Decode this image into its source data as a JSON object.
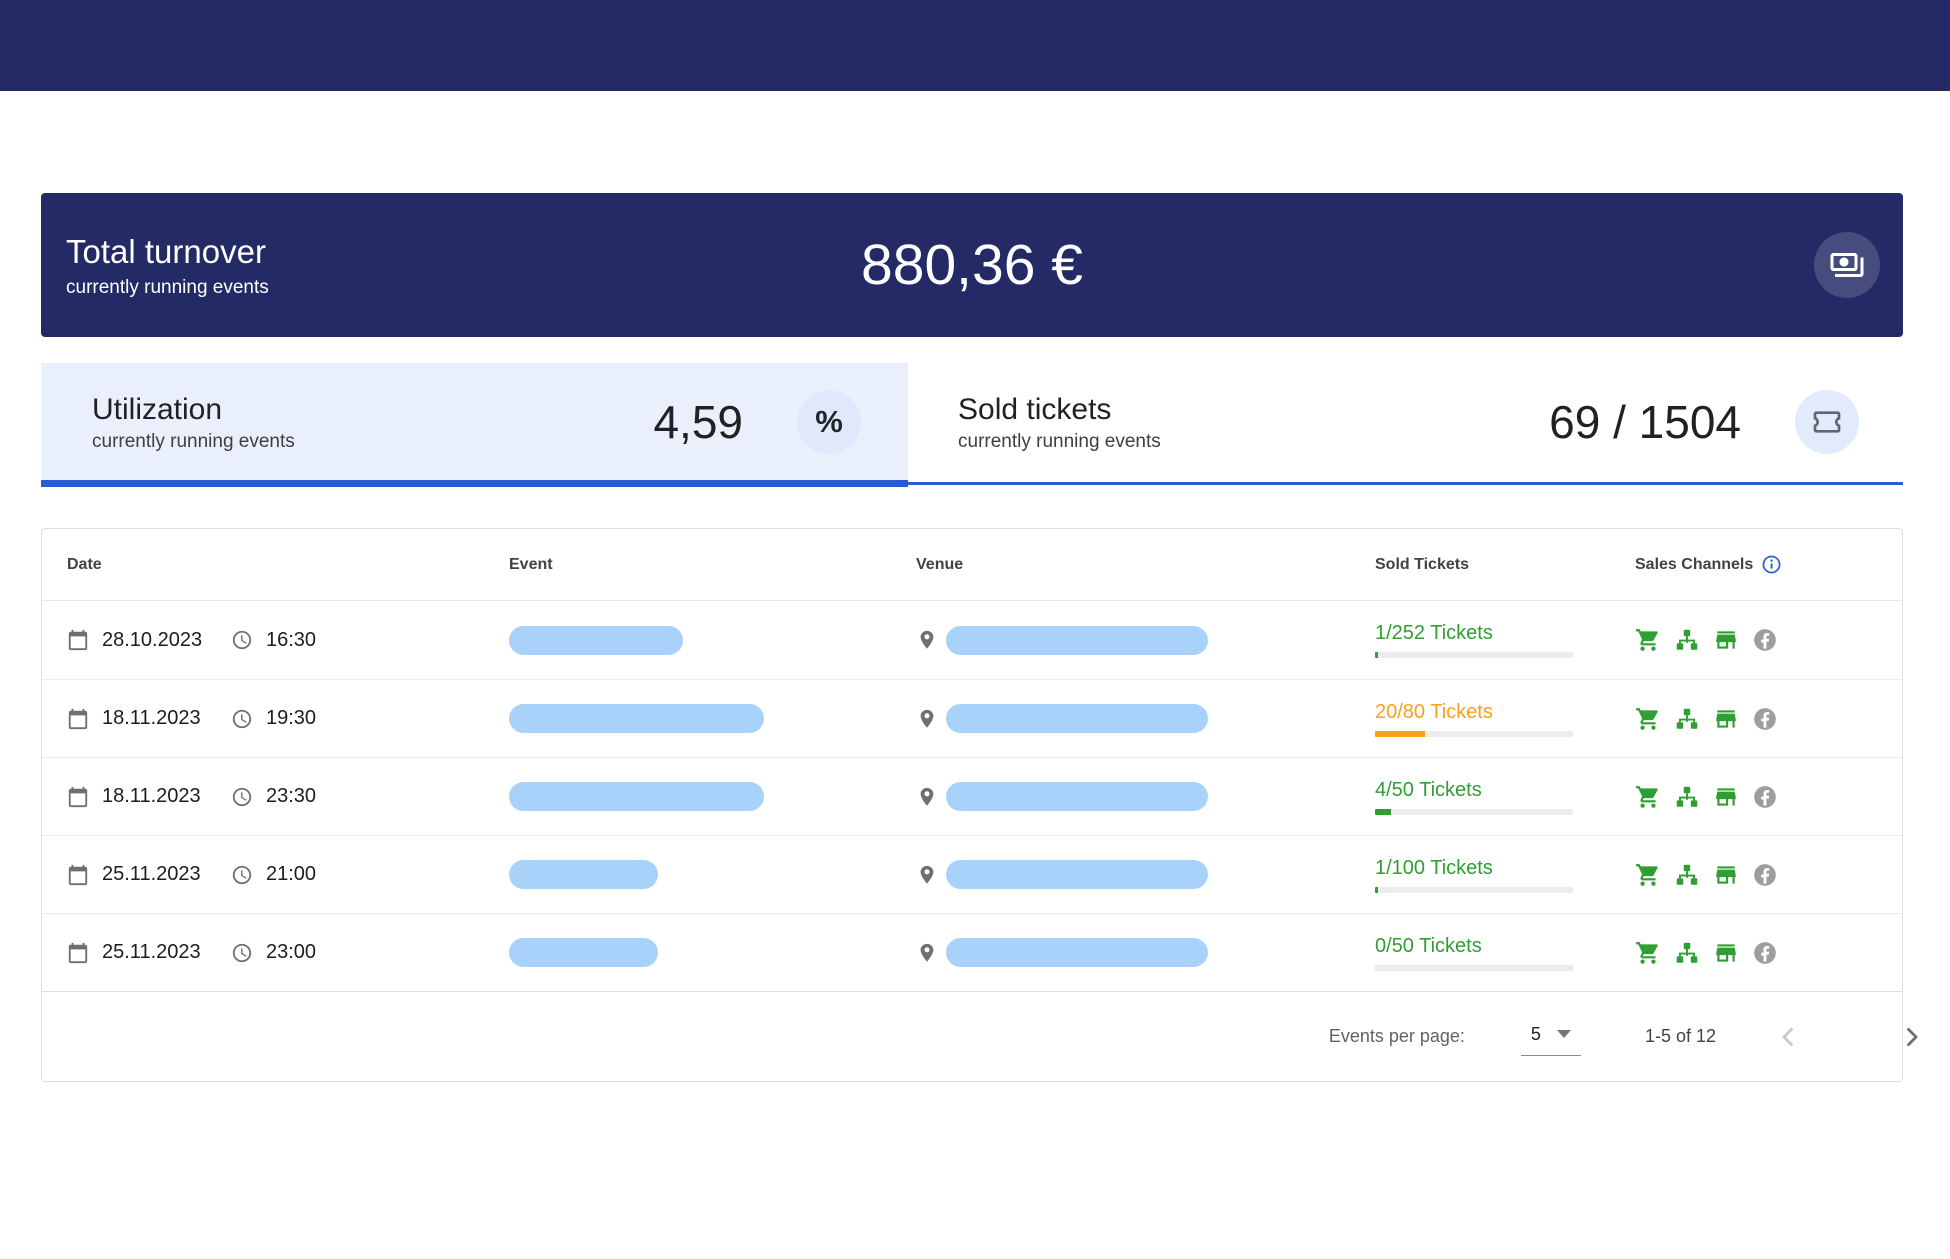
{
  "colors": {
    "navy": "#232a66",
    "accent_blue": "#2a5bd7",
    "green": "#2f9e33",
    "orange": "#f9a11b",
    "pill_blue": "#a9d2fb",
    "inactive_gray": "#9e9e9e"
  },
  "turnover": {
    "title": "Total turnover",
    "subtitle": "currently running events",
    "value": "880,36 €",
    "icon": "banknote-icon"
  },
  "tabs": {
    "utilization": {
      "title": "Utilization",
      "subtitle": "currently running events",
      "value": "4,59",
      "unit": "%",
      "active": true
    },
    "sold": {
      "title": "Sold tickets",
      "subtitle": "currently running events",
      "value": "69 / 1504",
      "icon": "ticket-icon",
      "active": false
    }
  },
  "table": {
    "columns": [
      "Date",
      "Event",
      "Venue",
      "Sold Tickets",
      "Sales Channels"
    ],
    "rows": [
      {
        "date": "28.10.2023",
        "time": "16:30",
        "tickets_label": "1/252 Tickets",
        "progress_pct": 0.4,
        "status_color": "#2f9e33",
        "event_pill_width": 174,
        "venue_pill_width": 262,
        "channels": [
          {
            "icon": "cart-icon",
            "active": true
          },
          {
            "icon": "network-icon",
            "active": true
          },
          {
            "icon": "store-icon",
            "active": true
          },
          {
            "icon": "facebook-icon",
            "active": false
          }
        ]
      },
      {
        "date": "18.11.2023",
        "time": "19:30",
        "tickets_label": "20/80 Tickets",
        "progress_pct": 25,
        "status_color": "#f9a11b",
        "event_pill_width": 255,
        "venue_pill_width": 262,
        "channels": [
          {
            "icon": "cart-icon",
            "active": true
          },
          {
            "icon": "network-icon",
            "active": true
          },
          {
            "icon": "store-icon",
            "active": true
          },
          {
            "icon": "facebook-icon",
            "active": false
          }
        ]
      },
      {
        "date": "18.11.2023",
        "time": "23:30",
        "tickets_label": "4/50 Tickets",
        "progress_pct": 8,
        "status_color": "#2f9e33",
        "event_pill_width": 255,
        "venue_pill_width": 262,
        "channels": [
          {
            "icon": "cart-icon",
            "active": true
          },
          {
            "icon": "network-icon",
            "active": true
          },
          {
            "icon": "store-icon",
            "active": true
          },
          {
            "icon": "facebook-icon",
            "active": false
          }
        ]
      },
      {
        "date": "25.11.2023",
        "time": "21:00",
        "tickets_label": "1/100 Tickets",
        "progress_pct": 1,
        "status_color": "#2f9e33",
        "event_pill_width": 149,
        "venue_pill_width": 262,
        "channels": [
          {
            "icon": "cart-icon",
            "active": true
          },
          {
            "icon": "network-icon",
            "active": true
          },
          {
            "icon": "store-icon",
            "active": true
          },
          {
            "icon": "facebook-icon",
            "active": false
          }
        ]
      },
      {
        "date": "25.11.2023",
        "time": "23:00",
        "tickets_label": "0/50 Tickets",
        "progress_pct": 0,
        "status_color": "#2f9e33",
        "event_pill_width": 149,
        "venue_pill_width": 262,
        "channels": [
          {
            "icon": "cart-icon",
            "active": true
          },
          {
            "icon": "network-icon",
            "active": true
          },
          {
            "icon": "store-icon",
            "active": true
          },
          {
            "icon": "facebook-icon",
            "active": false
          }
        ]
      }
    ]
  },
  "pagination": {
    "label": "Events per page:",
    "page_size": "5",
    "range": "1-5 of 12"
  }
}
